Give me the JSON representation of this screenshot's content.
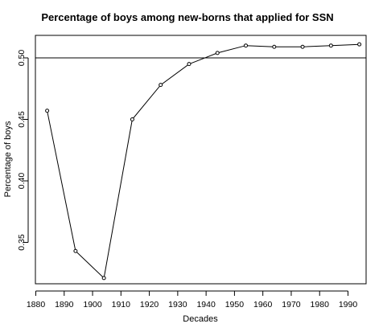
{
  "chart_data": {
    "type": "line",
    "title": "Percentage of boys among new-borns that applied for SSN",
    "xlabel": "Decades",
    "ylabel": "Percentage of boys",
    "xlim": [
      1880,
      1995
    ],
    "ylim": [
      0.315,
      0.515
    ],
    "xticks": [
      1880,
      1890,
      1900,
      1910,
      1920,
      1930,
      1940,
      1950,
      1960,
      1970,
      1980,
      1990
    ],
    "yticks": [
      0.35,
      0.4,
      0.45,
      0.5
    ],
    "ytick_labels": [
      "0.35",
      "0.40",
      "0.45",
      "0.50"
    ],
    "reference_line_y": 0.5,
    "marker": "open-circle",
    "grid": false,
    "series": [
      {
        "x": [
          1884,
          1894,
          1904,
          1914,
          1924,
          1934,
          1944,
          1954,
          1964,
          1974,
          1984,
          1994
        ],
        "values": [
          0.457,
          0.343,
          0.321,
          0.45,
          0.478,
          0.495,
          0.504,
          0.51,
          0.509,
          0.509,
          0.51,
          0.511
        ]
      }
    ]
  }
}
